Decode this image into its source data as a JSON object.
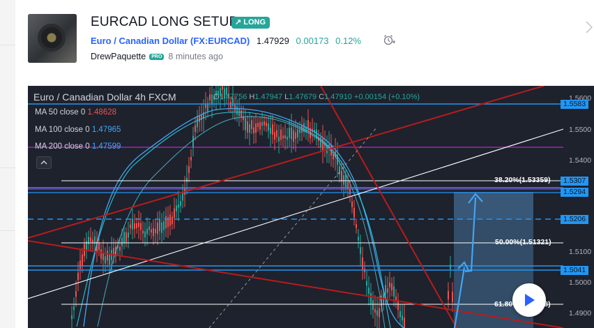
{
  "idea": {
    "title": "EURCAD LONG SETUP",
    "badge": "LONG",
    "symbol_name": "Euro / Canadian Dollar (FX:EURCAD)",
    "price": "1.47929",
    "change": "0.00173",
    "change_pct": "0.12%",
    "author": "DrewPaquette",
    "pro_badge": "PRO",
    "posted": "8 minutes ago"
  },
  "icons": {
    "badge": "trend-up-arrow-icon",
    "alert": "alarm-clock-plus-icon",
    "next": "chevron-right-icon",
    "collapse": "chevron-up-icon",
    "play": "play-icon"
  },
  "chart": {
    "header": "Euro / Canadian Dollar   4h   FXCM",
    "ohlc": {
      "o_label": "O",
      "o": "1.47756",
      "h_label": "H",
      "h": "1.47947",
      "l_label": "L",
      "l": "1.47679",
      "c_label": "C",
      "c": "1.47910",
      "chg": "+0.00154 (+0.10%)"
    },
    "mas": [
      {
        "label": "MA 50 close 0",
        "value": "1.48628"
      },
      {
        "label": "MA 100 close 0",
        "value": "1.47965"
      },
      {
        "label": "MA 200 close 0",
        "value": "1.47599"
      }
    ],
    "fib": [
      {
        "label": "38.20%(1.53359)"
      },
      {
        "label": "50.00%(1.51321)"
      },
      {
        "label": "61.80%(1.49283)"
      }
    ],
    "price_labels": [
      "1.5583",
      "1.5307",
      "1.5294",
      "1.5206",
      "1.5041"
    ],
    "axis_ticks": [
      "1.5600",
      "1.5500",
      "1.5400",
      "1.5100",
      "1.5000",
      "1.4900"
    ],
    "colors": {
      "up": "#26a69a",
      "down": "#ef5350",
      "ma50": "#ef5350",
      "ma100": "#42a5f5",
      "level": "#2196f3",
      "trend": "#b71c1c",
      "zone": "#5b9bd5"
    }
  }
}
